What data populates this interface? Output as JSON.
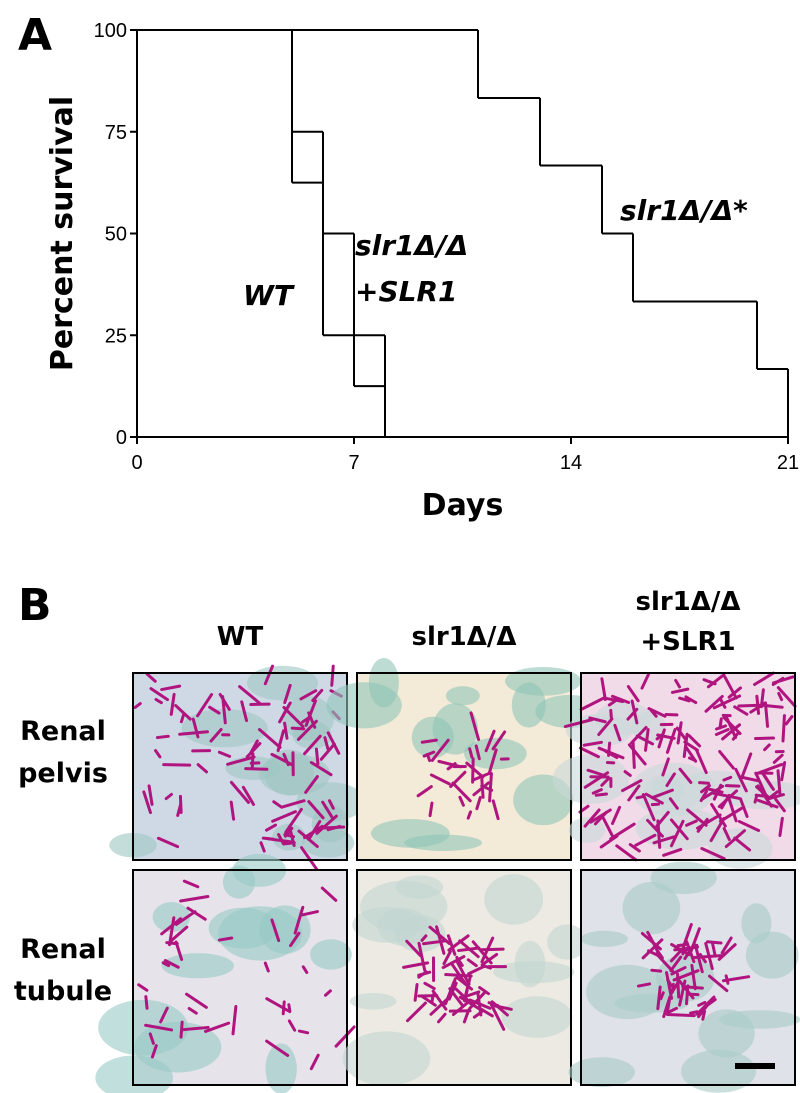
{
  "chart_data": {
    "type": "step",
    "panel_label": "A",
    "xlabel": "Days",
    "ylabel": "Percent survival",
    "xlim": [
      0,
      21
    ],
    "xticks": [
      0,
      7,
      14,
      21
    ],
    "ylim": [
      0,
      100
    ],
    "yticks": [
      0,
      25,
      50,
      75,
      100
    ],
    "series": [
      {
        "label_lines": [
          "WT"
        ],
        "color": "#000000",
        "x": [
          0,
          5,
          6,
          7,
          8
        ],
        "values": [
          100,
          62.5,
          25,
          12.5,
          0
        ]
      },
      {
        "label_lines": [
          "slr1Δ/Δ",
          "+SLR1"
        ],
        "color": "#000000",
        "x": [
          0,
          5,
          6,
          7,
          8
        ],
        "values": [
          100,
          75,
          50,
          25,
          0
        ]
      },
      {
        "label_lines": [
          "slr1Δ/Δ*"
        ],
        "color": "#000000",
        "x": [
          0,
          11,
          13,
          15,
          16,
          20,
          21
        ],
        "values": [
          100,
          83.3,
          66.7,
          50,
          33.3,
          16.7,
          0
        ]
      }
    ]
  },
  "panel_b": {
    "label": "B",
    "columns": [
      [
        "WT"
      ],
      [
        "slr1Δ/Δ"
      ],
      [
        "slr1Δ/Δ",
        "+SLR1"
      ]
    ],
    "rows": [
      [
        "Renal",
        "pelvis"
      ],
      [
        "Renal",
        "tubule"
      ]
    ]
  }
}
